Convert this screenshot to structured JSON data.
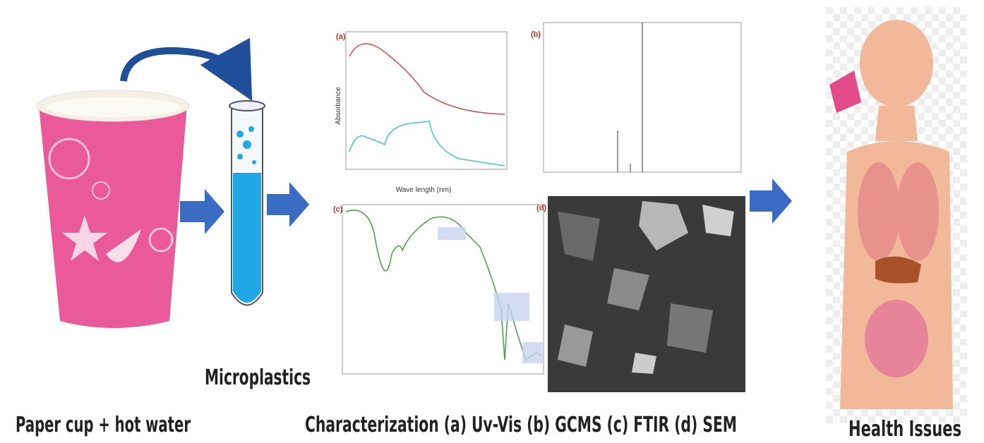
{
  "captions": {
    "cup": "Paper cup + hot water",
    "microplastics": "Microplastics",
    "characterization": "Characterization (a) Uv-Vis (b) GCMS (c) FTIR (d) SEM",
    "health": "Health Issues"
  },
  "panels": {
    "a": {
      "tag": "(a)",
      "y_axis": "Absorbance",
      "x_axis": "Wave length (nm)"
    },
    "b": {
      "tag": "(b)"
    },
    "c": {
      "tag": "(c)"
    },
    "d": {
      "tag": "(d)"
    }
  }
}
